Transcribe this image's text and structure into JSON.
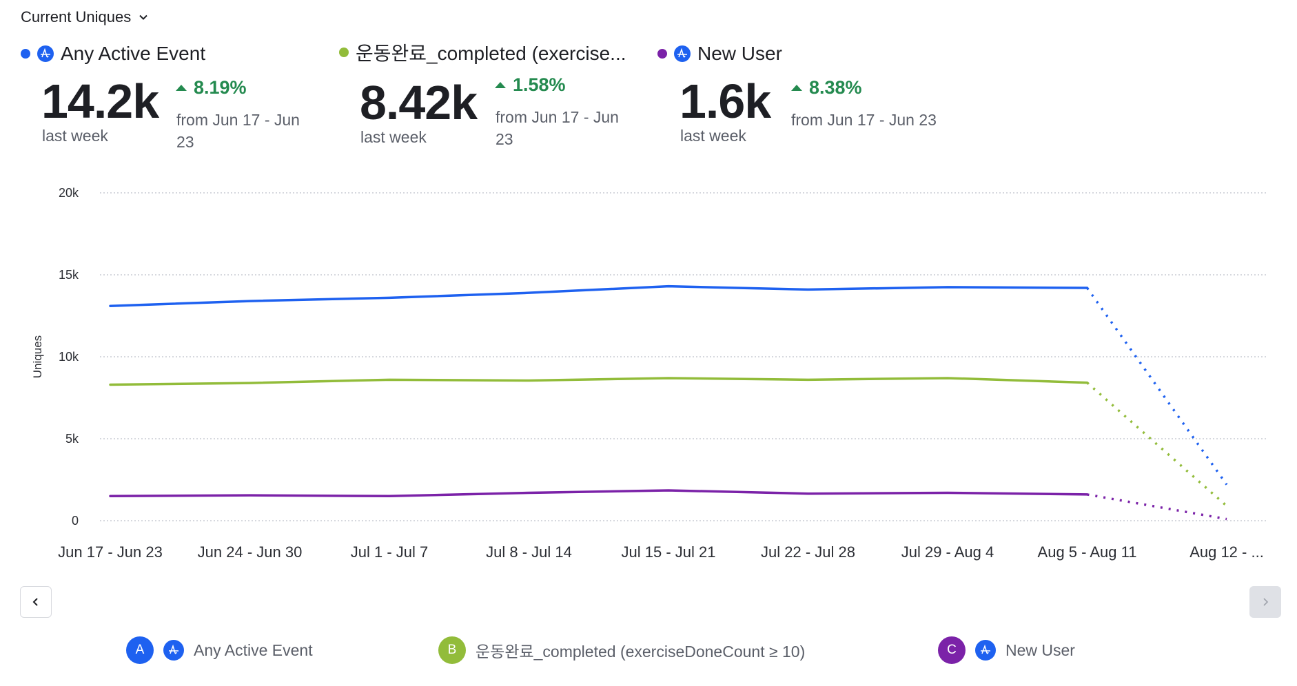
{
  "header": {
    "metric_selector": "Current Uniques"
  },
  "kpis": [
    {
      "label": "Any Active Event",
      "color": "#1e61f0",
      "has_event_icon": true,
      "value": "14.2k",
      "period": "last week",
      "delta": "8.19%",
      "delta_direction": "up",
      "compare": "from Jun 17 - Jun 23"
    },
    {
      "label": "운동완료_completed (exercise...",
      "color": "#92bc3a",
      "has_event_icon": false,
      "value": "8.42k",
      "period": "last week",
      "delta": "1.58%",
      "delta_direction": "up",
      "compare": "from Jun 17 - Jun 23"
    },
    {
      "label": "New User",
      "color": "#7b22a8",
      "has_event_icon": true,
      "value": "1.6k",
      "period": "last week",
      "delta": "8.38%",
      "delta_direction": "up",
      "compare": "from Jun 17 - Jun 23"
    }
  ],
  "legend": [
    {
      "badge": "A",
      "label": "Any Active Event",
      "color": "#1e61f0",
      "has_event_icon": true
    },
    {
      "badge": "B",
      "label": "운동완료_completed (exerciseDoneCount ≥ 10)",
      "color": "#92bc3a",
      "has_event_icon": false
    },
    {
      "badge": "C",
      "label": "New User",
      "color": "#7b22a8",
      "has_event_icon": true
    }
  ],
  "chart_data": {
    "type": "line",
    "title": "",
    "xlabel": "",
    "ylabel": "Uniques",
    "ylim": [
      0,
      20000
    ],
    "yticks": [
      0,
      5000,
      10000,
      15000,
      20000
    ],
    "ytick_labels": [
      "0",
      "5k",
      "10k",
      "15k",
      "20k"
    ],
    "grid": true,
    "categories": [
      "Jun 17 - Jun 23",
      "Jun 24 - Jun 30",
      "Jul 1 - Jul 7",
      "Jul 8 - Jul 14",
      "Jul 15 - Jul 21",
      "Jul 22 - Jul 28",
      "Jul 29 - Aug 4",
      "Aug 5 - Aug 11",
      "Aug 12 - ..."
    ],
    "incomplete_last_period": true,
    "series": [
      {
        "name": "Any Active Event",
        "color": "#1e61f0",
        "values": [
          13100,
          13400,
          13600,
          13900,
          14300,
          14100,
          14250,
          14200,
          2200
        ]
      },
      {
        "name": "운동완료_completed (exerciseDoneCount ≥ 10)",
        "color": "#92bc3a",
        "values": [
          8300,
          8400,
          8600,
          8550,
          8700,
          8600,
          8700,
          8420,
          900
        ]
      },
      {
        "name": "New User",
        "color": "#7b22a8",
        "values": [
          1500,
          1550,
          1500,
          1700,
          1850,
          1650,
          1700,
          1600,
          100
        ]
      }
    ]
  },
  "pagination": {
    "prev_label": "‹",
    "next_label": "›",
    "next_disabled": true
  }
}
